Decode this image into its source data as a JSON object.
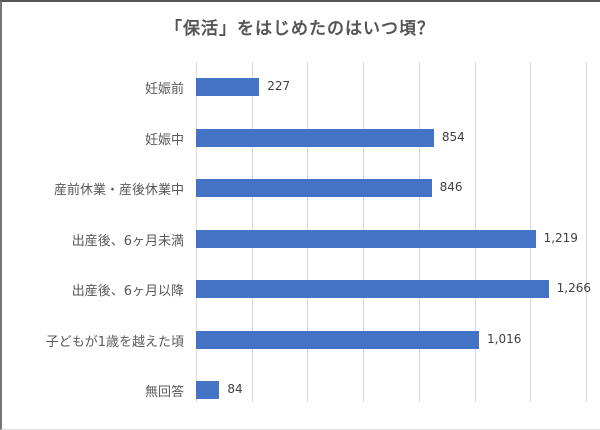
{
  "chart_data": {
    "type": "bar",
    "orientation": "horizontal",
    "title": "「保活」をはじめたのはいつ頃？",
    "categories": [
      "妊娠前",
      "妊娠中",
      "産前休業・産後休業中",
      "出産後、6ヶ月未満",
      "出産後、6ヶ月以降",
      "子どもが1歳を越えた頃",
      "無回答"
    ],
    "values": [
      227,
      854,
      846,
      1219,
      1266,
      1016,
      84
    ],
    "value_labels": [
      "227",
      "854",
      "846",
      "1,219",
      "1,266",
      "1,016",
      "84"
    ],
    "xlabel": "",
    "ylabel": "",
    "xlim": [
      0,
      1400
    ],
    "grid": true,
    "legend": "none",
    "bar_color": "#4472c4"
  }
}
